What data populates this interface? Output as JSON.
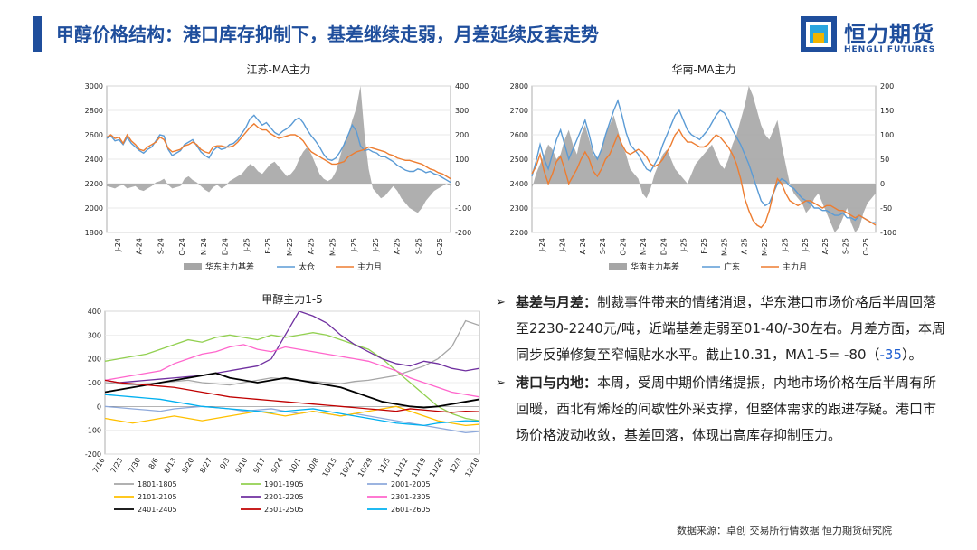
{
  "title": "甲醇价格结构：港口库存抑制下，基差继续走弱，月差延续反套走势",
  "logo": {
    "text": "恒力期货",
    "sub": "HENGLI FUTURES"
  },
  "chart_data": [
    {
      "type": "line",
      "title": "江苏-MA主力",
      "x_ticks": [
        "J-24",
        "A-24",
        "S-24",
        "O-24",
        "N-24",
        "D-24",
        "J-25",
        "F-25",
        "M-25",
        "A-25",
        "M-25",
        "J-25",
        "J-25",
        "A-25",
        "S-25",
        "O-25"
      ],
      "ylim_left": [
        1800,
        3000
      ],
      "ylim_right": [
        -200,
        400
      ],
      "y_ticks_left": [
        1800,
        2000,
        2200,
        2400,
        2600,
        2800,
        3000
      ],
      "y_ticks_right": [
        -200,
        -100,
        0,
        100,
        200,
        300,
        400
      ],
      "series": [
        {
          "name": "华东主力基差",
          "kind": "area",
          "axis": "right",
          "color": "#a6a6a6",
          "values": [
            -10,
            -15,
            -20,
            -10,
            -5,
            -20,
            -15,
            -10,
            -25,
            -30,
            -20,
            -10,
            5,
            10,
            20,
            -5,
            -20,
            -15,
            -10,
            20,
            30,
            15,
            5,
            -10,
            -25,
            -35,
            -15,
            -5,
            -20,
            -10,
            10,
            20,
            30,
            40,
            60,
            80,
            70,
            50,
            40,
            60,
            80,
            90,
            70,
            50,
            30,
            40,
            60,
            100,
            130,
            150,
            120,
            80,
            40,
            20,
            10,
            20,
            50,
            110,
            170,
            200,
            260,
            310,
            400,
            200,
            60,
            -20,
            -40,
            -60,
            -50,
            -30,
            -10,
            -30,
            -60,
            -80,
            -100,
            -110,
            -120,
            -100,
            -70,
            -50,
            -30,
            -20,
            -10,
            0,
            -10
          ]
        },
        {
          "name": "太仓",
          "kind": "line",
          "axis": "left",
          "color": "#5b9bd5",
          "values": [
            2570,
            2590,
            2550,
            2560,
            2520,
            2580,
            2530,
            2500,
            2470,
            2450,
            2480,
            2500,
            2550,
            2600,
            2590,
            2480,
            2430,
            2450,
            2470,
            2520,
            2540,
            2560,
            2510,
            2460,
            2430,
            2410,
            2470,
            2500,
            2480,
            2490,
            2520,
            2530,
            2560,
            2610,
            2660,
            2730,
            2760,
            2720,
            2680,
            2700,
            2660,
            2620,
            2600,
            2630,
            2650,
            2680,
            2720,
            2740,
            2700,
            2640,
            2590,
            2550,
            2500,
            2440,
            2400,
            2390,
            2410,
            2460,
            2520,
            2600,
            2680,
            2630,
            2510,
            2470,
            2480,
            2460,
            2450,
            2420,
            2420,
            2400,
            2380,
            2350,
            2330,
            2310,
            2300,
            2300,
            2320,
            2310,
            2290,
            2300,
            2280,
            2270,
            2250,
            2230,
            2210
          ]
        },
        {
          "name": "主力月",
          "kind": "line",
          "axis": "left",
          "color": "#ed7d31",
          "values": [
            2580,
            2600,
            2570,
            2580,
            2530,
            2600,
            2550,
            2520,
            2480,
            2470,
            2500,
            2520,
            2540,
            2580,
            2560,
            2490,
            2460,
            2470,
            2480,
            2510,
            2520,
            2540,
            2520,
            2480,
            2460,
            2450,
            2500,
            2510,
            2510,
            2500,
            2500,
            2510,
            2540,
            2580,
            2620,
            2660,
            2690,
            2660,
            2640,
            2640,
            2610,
            2590,
            2570,
            2580,
            2590,
            2600,
            2600,
            2580,
            2550,
            2500,
            2460,
            2440,
            2420,
            2400,
            2380,
            2360,
            2360,
            2370,
            2380,
            2420,
            2440,
            2460,
            2470,
            2480,
            2500,
            2490,
            2480,
            2470,
            2460,
            2440,
            2430,
            2410,
            2400,
            2390,
            2390,
            2380,
            2370,
            2360,
            2340,
            2320,
            2310,
            2290,
            2280,
            2260,
            2240
          ]
        }
      ]
    },
    {
      "type": "line",
      "title": "华南-MA主力",
      "x_ticks": [
        "J-24",
        "J-24",
        "A-24",
        "S-24",
        "O-24",
        "N-24",
        "D-24",
        "J-25",
        "F-25",
        "M-25",
        "A-25",
        "M-25",
        "J-25",
        "J-25",
        "A-25",
        "S-25",
        "O-25"
      ],
      "ylim_left": [
        2200,
        2800
      ],
      "ylim_right": [
        -100,
        200
      ],
      "y_ticks_left": [
        2200,
        2300,
        2400,
        2500,
        2600,
        2700,
        2800
      ],
      "y_ticks_right": [
        -100,
        -50,
        0,
        50,
        100,
        150,
        200
      ],
      "series": [
        {
          "name": "华南主力基差",
          "kind": "area",
          "axis": "right",
          "color": "#a6a6a6",
          "values": [
            -10,
            20,
            40,
            60,
            80,
            70,
            50,
            60,
            90,
            110,
            80,
            60,
            100,
            120,
            90,
            60,
            50,
            70,
            100,
            120,
            140,
            110,
            80,
            60,
            30,
            20,
            10,
            -20,
            -30,
            -10,
            20,
            40,
            60,
            70,
            50,
            30,
            20,
            10,
            0,
            20,
            40,
            50,
            60,
            70,
            80,
            60,
            40,
            30,
            50,
            80,
            100,
            130,
            160,
            200,
            180,
            150,
            120,
            100,
            90,
            110,
            130,
            80,
            40,
            0,
            -20,
            -30,
            -40,
            -60,
            -50,
            -30,
            -20,
            -40,
            -60,
            -80,
            -100,
            -90,
            -70,
            -50,
            -80,
            -100,
            -90,
            -60,
            -40,
            -30,
            -20
          ]
        },
        {
          "name": "广东",
          "kind": "line",
          "axis": "left",
          "color": "#5b9bd5",
          "values": [
            2430,
            2490,
            2560,
            2500,
            2460,
            2520,
            2580,
            2620,
            2560,
            2500,
            2540,
            2580,
            2620,
            2660,
            2600,
            2530,
            2500,
            2540,
            2600,
            2650,
            2700,
            2740,
            2680,
            2610,
            2560,
            2540,
            2520,
            2490,
            2460,
            2450,
            2480,
            2510,
            2560,
            2600,
            2640,
            2680,
            2700,
            2660,
            2620,
            2600,
            2590,
            2580,
            2600,
            2620,
            2650,
            2680,
            2700,
            2690,
            2660,
            2620,
            2590,
            2560,
            2520,
            2480,
            2430,
            2380,
            2330,
            2310,
            2320,
            2360,
            2400,
            2420,
            2410,
            2390,
            2380,
            2360,
            2340,
            2330,
            2320,
            2300,
            2300,
            2290,
            2290,
            2280,
            2270,
            2270,
            2280,
            2260,
            2260,
            2250,
            2270,
            2260,
            2250,
            2240,
            2240
          ]
        },
        {
          "name": "主力月",
          "kind": "line",
          "axis": "left",
          "color": "#ed7d31",
          "values": [
            2440,
            2470,
            2520,
            2450,
            2400,
            2440,
            2490,
            2510,
            2460,
            2400,
            2430,
            2460,
            2500,
            2530,
            2500,
            2450,
            2430,
            2460,
            2500,
            2520,
            2560,
            2600,
            2560,
            2530,
            2520,
            2530,
            2540,
            2530,
            2510,
            2480,
            2470,
            2480,
            2500,
            2530,
            2560,
            2600,
            2620,
            2590,
            2570,
            2570,
            2560,
            2550,
            2550,
            2560,
            2580,
            2600,
            2590,
            2570,
            2550,
            2520,
            2480,
            2420,
            2340,
            2290,
            2250,
            2230,
            2220,
            2240,
            2290,
            2360,
            2420,
            2400,
            2360,
            2330,
            2320,
            2310,
            2320,
            2330,
            2330,
            2320,
            2310,
            2300,
            2310,
            2310,
            2300,
            2290,
            2290,
            2280,
            2270,
            2260,
            2270,
            2260,
            2250,
            2240,
            2230
          ]
        }
      ]
    },
    {
      "type": "line",
      "title": "甲醇主力1-5",
      "x_ticks": [
        "7/16",
        "7/23",
        "7/30",
        "8/6",
        "8/13",
        "8/20",
        "8/27",
        "9/3",
        "9/10",
        "9/17",
        "9/24",
        "10/1",
        "10/8",
        "10/15",
        "10/22",
        "10/29",
        "11/5",
        "11/12",
        "11/19",
        "11/26",
        "12/3",
        "12/10"
      ],
      "ylim": [
        -200,
        400
      ],
      "y_ticks": [
        -200,
        -100,
        0,
        100,
        200,
        300,
        400
      ],
      "series": [
        {
          "name": "1801-1805",
          "color": "#a6a6a6",
          "values": [
            100,
            95,
            90,
            95,
            100,
            105,
            110,
            100,
            95,
            90,
            100,
            110,
            120,
            115,
            110,
            105,
            100,
            95,
            105,
            110,
            120,
            130,
            150,
            170,
            200,
            250,
            360,
            340
          ]
        },
        {
          "name": "1901-1905",
          "color": "#92d050",
          "values": [
            190,
            200,
            210,
            220,
            240,
            260,
            280,
            270,
            290,
            300,
            290,
            280,
            300,
            290,
            300,
            310,
            300,
            280,
            260,
            240,
            200,
            150,
            100,
            50,
            0,
            -30,
            -50,
            -60
          ]
        },
        {
          "name": "2001-2005",
          "color": "#8ea9db",
          "values": [
            0,
            -5,
            -10,
            -15,
            -20,
            -10,
            -5,
            0,
            -5,
            -10,
            -20,
            -15,
            -10,
            -20,
            -30,
            -20,
            -30,
            -40,
            -30,
            -40,
            -50,
            -60,
            -70,
            -80,
            -90,
            -100,
            -110,
            -105
          ]
        },
        {
          "name": "2101-2105",
          "color": "#ffc000",
          "values": [
            -50,
            -60,
            -70,
            -60,
            -50,
            -40,
            -50,
            -60,
            -50,
            -40,
            -30,
            -20,
            -30,
            -40,
            -30,
            -20,
            -30,
            -40,
            -30,
            -20,
            -10,
            0,
            -20,
            -40,
            -60,
            -70,
            -80,
            -75
          ]
        },
        {
          "name": "2201-2205",
          "color": "#7030a0",
          "values": [
            110,
            100,
            105,
            110,
            115,
            120,
            125,
            130,
            140,
            150,
            160,
            170,
            200,
            300,
            400,
            380,
            350,
            300,
            260,
            230,
            200,
            180,
            170,
            190,
            180,
            160,
            150,
            160
          ]
        },
        {
          "name": "2301-2305",
          "color": "#ff66cc",
          "values": [
            110,
            120,
            130,
            140,
            150,
            180,
            200,
            220,
            230,
            250,
            260,
            240,
            230,
            250,
            240,
            230,
            220,
            210,
            200,
            190,
            170,
            150,
            120,
            100,
            80,
            60,
            50,
            40
          ]
        },
        {
          "name": "2401-2405",
          "color": "#000000",
          "values": [
            60,
            70,
            80,
            90,
            100,
            110,
            120,
            130,
            140,
            120,
            110,
            100,
            110,
            120,
            110,
            100,
            90,
            80,
            60,
            40,
            20,
            10,
            0,
            -5,
            0,
            10,
            20,
            30
          ]
        },
        {
          "name": "2501-2505",
          "color": "#c00000",
          "values": [
            110,
            100,
            95,
            90,
            85,
            80,
            70,
            60,
            50,
            40,
            35,
            30,
            25,
            20,
            15,
            10,
            5,
            0,
            -5,
            -10,
            -15,
            -20,
            -10,
            -15,
            -20,
            -25,
            -20,
            -22
          ]
        },
        {
          "name": "2601-2605",
          "color": "#00b0f0",
          "values": [
            50,
            45,
            40,
            35,
            30,
            20,
            10,
            0,
            -5,
            -10,
            -15,
            -20,
            -25,
            -20,
            -15,
            -10,
            -20,
            -30,
            -40,
            -50,
            -60,
            -70,
            -75,
            -80,
            -70,
            -65,
            -60,
            -62
          ]
        }
      ]
    }
  ],
  "text_block": [
    {
      "label": "基差与月差：",
      "parts": [
        {
          "text": "制裁事件带来的情绪消退，华东港口市场价格后半周回落至2230-2240元/吨，近端基差走弱至01-40/-30左右。月差方面，本周同步反弹修复至窄幅贴水水平。截止10.31，MA1-5= -80（",
          "color": ""
        },
        {
          "text": "-35",
          "color": "#1f5fd0"
        },
        {
          "text": "）。",
          "color": ""
        }
      ]
    },
    {
      "label": "港口与内地：",
      "parts": [
        {
          "text": "本周，受周中期价情绪提振，内地市场价格在后半周有所回暖，西北有烯烃的间歇性外采支撑，但整体需求的跟进存疑。港口市场价格波动收敛，基差回落，体现出高库存抑制压力。",
          "color": ""
        }
      ]
    }
  ],
  "source": "数据来源：卓创  交易所行情数据  恒力期货研究院"
}
